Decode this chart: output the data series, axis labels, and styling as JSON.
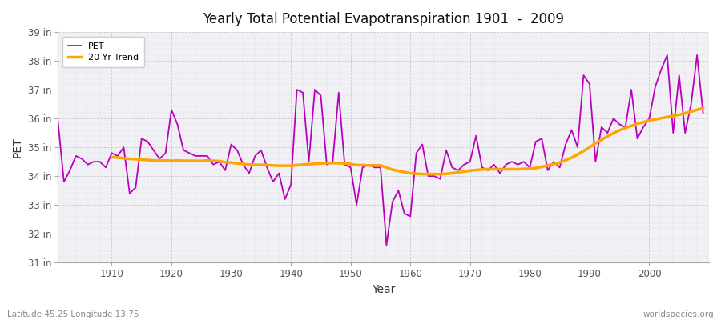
{
  "title": "Yearly Total Potential Evapotranspiration 1901  -  2009",
  "xlabel": "Year",
  "ylabel": "PET",
  "subtitle_left": "Latitude 45.25 Longitude 13.75",
  "subtitle_right": "worldspecies.org",
  "pet_color": "#BB00BB",
  "trend_color": "#FFA500",
  "bg_color": "#FFFFFF",
  "plot_bg_color": "#F0F0F5",
  "grid_color": "#CCCCCC",
  "ylim_low": 31,
  "ylim_high": 39,
  "yticks": [
    31,
    32,
    33,
    34,
    35,
    36,
    37,
    38,
    39
  ],
  "ytick_labels": [
    "31 in",
    "32 in",
    "33 in",
    "34 in",
    "35 in",
    "36 in",
    "37 in",
    "38 in",
    "39 in"
  ],
  "years": [
    1901,
    1902,
    1903,
    1904,
    1905,
    1906,
    1907,
    1908,
    1909,
    1910,
    1911,
    1912,
    1913,
    1914,
    1915,
    1916,
    1917,
    1918,
    1919,
    1920,
    1921,
    1922,
    1923,
    1924,
    1925,
    1926,
    1927,
    1928,
    1929,
    1930,
    1931,
    1932,
    1933,
    1934,
    1935,
    1936,
    1937,
    1938,
    1939,
    1940,
    1941,
    1942,
    1943,
    1944,
    1945,
    1946,
    1947,
    1948,
    1949,
    1950,
    1951,
    1952,
    1953,
    1954,
    1955,
    1956,
    1957,
    1958,
    1959,
    1960,
    1961,
    1962,
    1963,
    1964,
    1965,
    1966,
    1967,
    1968,
    1969,
    1970,
    1971,
    1972,
    1973,
    1974,
    1975,
    1976,
    1977,
    1978,
    1979,
    1980,
    1981,
    1982,
    1983,
    1984,
    1985,
    1986,
    1987,
    1988,
    1989,
    1990,
    1991,
    1992,
    1993,
    1994,
    1995,
    1996,
    1997,
    1998,
    1999,
    2000,
    2001,
    2002,
    2003,
    2004,
    2005,
    2006,
    2007,
    2008,
    2009
  ],
  "pet_values": [
    35.9,
    33.8,
    34.2,
    34.7,
    34.6,
    34.4,
    34.5,
    34.5,
    34.3,
    34.8,
    34.7,
    35.0,
    33.4,
    33.6,
    35.3,
    35.2,
    34.9,
    34.6,
    34.8,
    36.3,
    35.8,
    34.9,
    34.8,
    34.7,
    34.7,
    34.7,
    34.4,
    34.5,
    34.2,
    35.1,
    34.9,
    34.4,
    34.1,
    34.7,
    34.9,
    34.3,
    33.8,
    34.1,
    33.2,
    33.7,
    37.0,
    36.9,
    34.5,
    37.0,
    36.8,
    34.4,
    34.5,
    36.9,
    34.4,
    34.3,
    33.0,
    34.3,
    34.4,
    34.3,
    34.3,
    31.6,
    33.1,
    33.5,
    32.7,
    32.6,
    34.8,
    35.1,
    34.0,
    34.0,
    33.9,
    34.9,
    34.3,
    34.2,
    34.4,
    34.5,
    35.4,
    34.3,
    34.2,
    34.4,
    34.1,
    34.4,
    34.5,
    34.4,
    34.5,
    34.3,
    35.2,
    35.3,
    34.2,
    34.5,
    34.3,
    35.1,
    35.6,
    35.0,
    37.5,
    37.2,
    34.5,
    35.7,
    35.5,
    36.0,
    35.8,
    35.7,
    37.0,
    35.3,
    35.7,
    36.0,
    37.1,
    37.7,
    38.2,
    35.5,
    37.5,
    35.5,
    36.5,
    38.2,
    36.2
  ],
  "trend_years": [
    1910,
    1911,
    1912,
    1913,
    1914,
    1915,
    1916,
    1917,
    1918,
    1919,
    1920,
    1921,
    1922,
    1923,
    1924,
    1925,
    1926,
    1927,
    1928,
    1929,
    1930,
    1931,
    1932,
    1933,
    1934,
    1935,
    1936,
    1937,
    1938,
    1939,
    1940,
    1941,
    1942,
    1943,
    1944,
    1945,
    1946,
    1947,
    1948,
    1949,
    1950,
    1951,
    1952,
    1953,
    1954,
    1955,
    1956,
    1957,
    1958,
    1959,
    1960,
    1961,
    1962,
    1963,
    1964,
    1965,
    1966,
    1967,
    1968,
    1969,
    1970,
    1971,
    1972,
    1973,
    1974,
    1975,
    1976,
    1977,
    1978,
    1979,
    1980,
    1981,
    1982,
    1983,
    1984,
    1985,
    1986,
    1987,
    1988,
    1989,
    1990,
    1991,
    1992,
    1993,
    1994,
    1995,
    1996,
    1997,
    1998,
    1999,
    2000,
    2001,
    2002,
    2003,
    2004,
    2005,
    2006,
    2007,
    2008,
    2009
  ],
  "trend_values": [
    34.66,
    34.64,
    34.62,
    34.6,
    34.59,
    34.57,
    34.56,
    34.54,
    34.54,
    34.54,
    34.53,
    34.54,
    34.53,
    34.53,
    34.53,
    34.53,
    34.54,
    34.53,
    34.52,
    34.48,
    34.47,
    34.44,
    34.42,
    34.4,
    34.39,
    34.39,
    34.38,
    34.37,
    34.36,
    34.36,
    34.36,
    34.38,
    34.4,
    34.41,
    34.43,
    34.44,
    34.45,
    34.46,
    34.45,
    34.44,
    34.42,
    34.38,
    34.38,
    34.37,
    34.37,
    34.37,
    34.3,
    34.22,
    34.18,
    34.14,
    34.1,
    34.08,
    34.07,
    34.07,
    34.07,
    34.07,
    34.08,
    34.1,
    34.13,
    34.16,
    34.19,
    34.21,
    34.23,
    34.24,
    34.24,
    34.24,
    34.24,
    34.24,
    34.24,
    34.25,
    34.26,
    34.28,
    34.32,
    34.37,
    34.42,
    34.47,
    34.55,
    34.64,
    34.75,
    34.87,
    35.0,
    35.14,
    35.26,
    35.38,
    35.49,
    35.59,
    35.67,
    35.74,
    35.82,
    35.87,
    35.93,
    35.97,
    36.01,
    36.05,
    36.09,
    36.13,
    36.18,
    36.24,
    36.3,
    36.36
  ]
}
